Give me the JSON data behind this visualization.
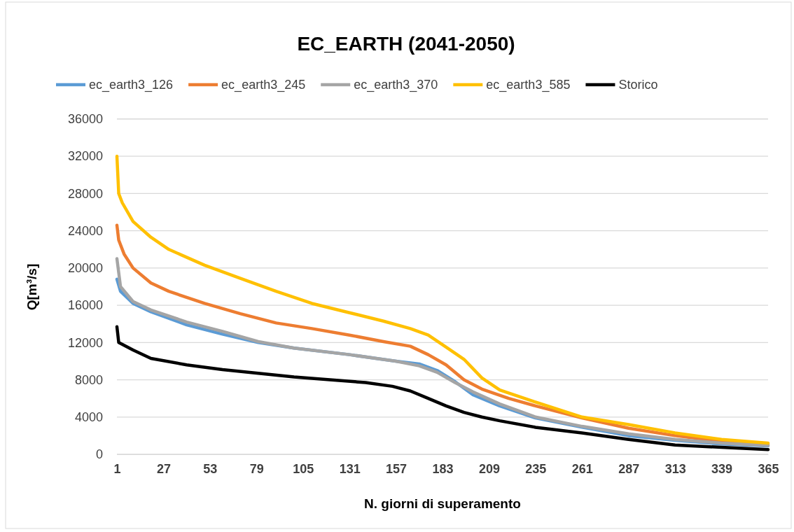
{
  "chart_data": {
    "type": "line",
    "title": "EC_EARTH (2041-2050)",
    "xlabel": "N. giorni di superamento",
    "ylabel": "Q[m³/s]",
    "xlim": [
      1,
      365
    ],
    "xticks": [
      1,
      27,
      53,
      79,
      105,
      131,
      157,
      183,
      209,
      235,
      261,
      287,
      313,
      339,
      365
    ],
    "ylim": [
      0,
      36000
    ],
    "yticks": [
      0,
      4000,
      8000,
      12000,
      16000,
      20000,
      24000,
      28000,
      32000,
      36000
    ],
    "grid": "y",
    "legend": "top",
    "marker": "none",
    "line_style": "solid",
    "series": [
      {
        "name": "ec_earth3_126",
        "color": "#5b9bd5",
        "x": [
          1,
          3,
          10,
          20,
          40,
          60,
          80,
          100,
          131,
          157,
          170,
          180,
          190,
          200,
          215,
          235,
          261,
          287,
          313,
          339,
          365
        ],
        "values": [
          18800,
          17500,
          16200,
          15300,
          13900,
          12900,
          12000,
          11400,
          10700,
          10000,
          9700,
          9000,
          7800,
          6400,
          5200,
          3900,
          2900,
          2000,
          1500,
          1100,
          900
        ]
      },
      {
        "name": "ec_earth3_245",
        "color": "#ed7d31",
        "x": [
          1,
          2,
          5,
          10,
          20,
          30,
          50,
          70,
          90,
          110,
          131,
          150,
          165,
          175,
          185,
          195,
          205,
          220,
          235,
          261,
          287,
          313,
          339,
          365
        ],
        "values": [
          24600,
          23000,
          21500,
          20000,
          18400,
          17500,
          16200,
          15100,
          14100,
          13500,
          12800,
          12100,
          11600,
          10700,
          9600,
          8000,
          7000,
          6000,
          5200,
          3900,
          2800,
          2000,
          1400,
          1100
        ]
      },
      {
        "name": "ec_earth3_370",
        "color": "#a5a5a5",
        "x": [
          1,
          3,
          10,
          20,
          40,
          60,
          80,
          100,
          131,
          157,
          170,
          180,
          190,
          200,
          215,
          235,
          261,
          287,
          313,
          339,
          365
        ],
        "values": [
          21000,
          18000,
          16400,
          15500,
          14200,
          13200,
          12100,
          11400,
          10700,
          10000,
          9500,
          8800,
          7700,
          6700,
          5400,
          4000,
          3000,
          2200,
          1600,
          1200,
          950
        ]
      },
      {
        "name": "ec_earth3_585",
        "color": "#ffc000",
        "x": [
          1,
          2,
          4,
          10,
          20,
          30,
          50,
          70,
          90,
          110,
          131,
          150,
          165,
          175,
          185,
          195,
          205,
          215,
          235,
          261,
          287,
          313,
          339,
          365
        ],
        "values": [
          32000,
          28000,
          27000,
          25000,
          23300,
          22000,
          20300,
          18900,
          17500,
          16200,
          15200,
          14300,
          13500,
          12800,
          11500,
          10200,
          8200,
          6900,
          5600,
          4000,
          3200,
          2300,
          1600,
          1200
        ]
      },
      {
        "name": "Storico",
        "color": "#000000",
        "x": [
          1,
          2,
          10,
          20,
          40,
          60,
          80,
          100,
          120,
          140,
          155,
          165,
          175,
          185,
          195,
          205,
          215,
          235,
          261,
          287,
          313,
          339,
          365
        ],
        "values": [
          13700,
          12000,
          11200,
          10300,
          9600,
          9100,
          8700,
          8300,
          8000,
          7700,
          7300,
          6800,
          6000,
          5200,
          4500,
          4000,
          3600,
          2900,
          2300,
          1600,
          1000,
          750,
          500
        ]
      }
    ]
  }
}
